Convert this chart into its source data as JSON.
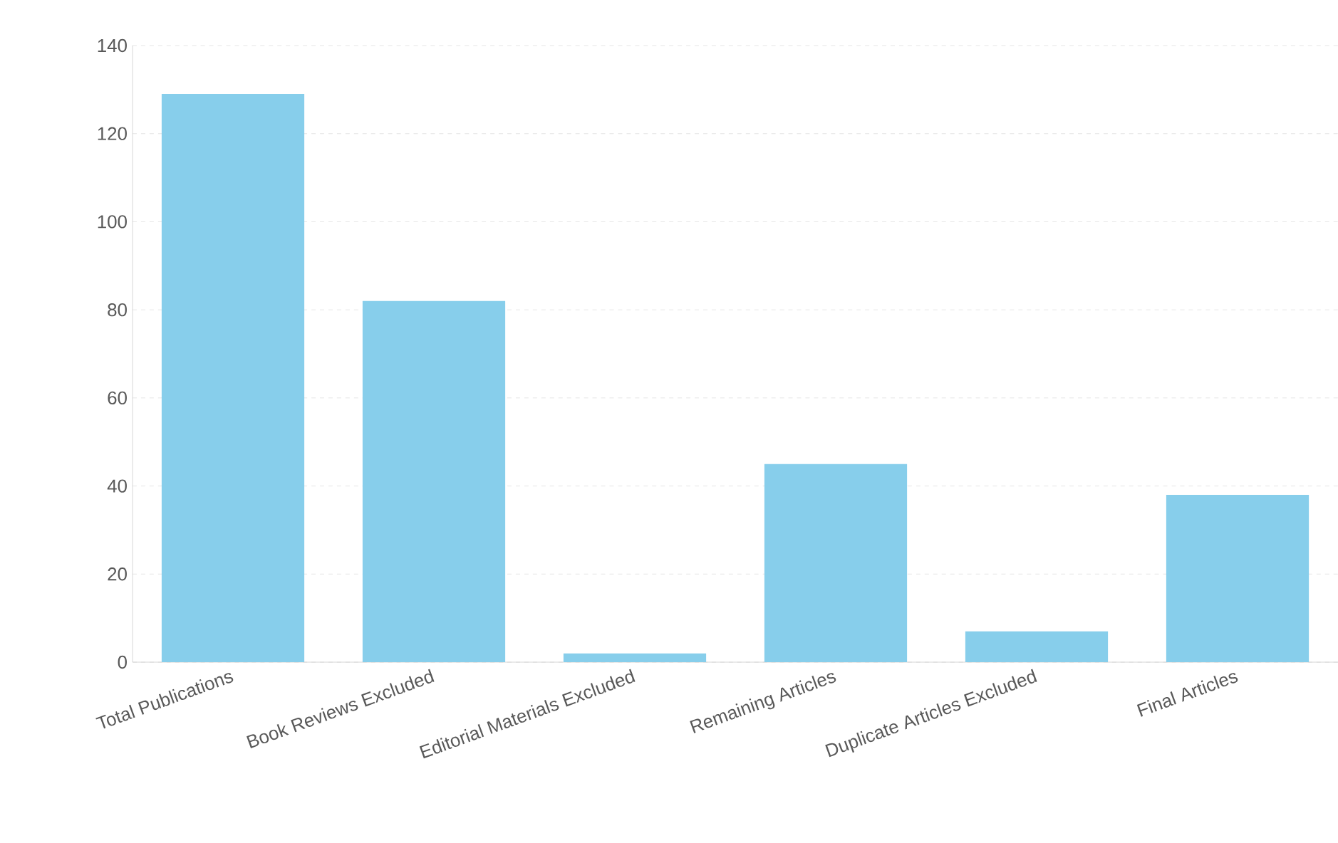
{
  "chart_data": {
    "type": "bar",
    "categories": [
      "Total Publications",
      "Book Reviews Excluded",
      "Editorial Materials Excluded",
      "Remaining Articles",
      "Duplicate Articles Excluded",
      "Final Articles"
    ],
    "values": [
      129,
      82,
      2,
      45,
      7,
      38
    ],
    "color": "#87ceeb",
    "ylim": [
      0,
      140
    ],
    "yticks": [
      0,
      20,
      40,
      60,
      80,
      100,
      120,
      140
    ],
    "grid": "y"
  }
}
